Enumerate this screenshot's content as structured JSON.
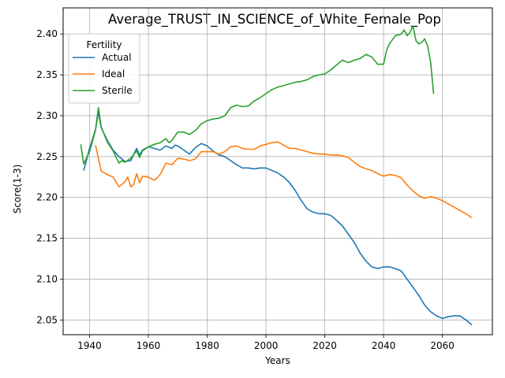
{
  "chart_data": {
    "type": "line",
    "title": "Average_TRUST_IN_SCIENCE_of_White_Female_Pop",
    "xlabel": "Years",
    "ylabel": "Score(1-3)",
    "xlim": [
      1931,
      2077
    ],
    "ylim": [
      2.032,
      2.432
    ],
    "xticks": [
      1940,
      1960,
      1980,
      2000,
      2020,
      2040,
      2060
    ],
    "yticks": [
      2.05,
      2.1,
      2.15,
      2.2,
      2.25,
      2.3,
      2.35,
      2.4
    ],
    "ytick_labels": [
      "2.05",
      "2.10",
      "2.15",
      "2.20",
      "2.25",
      "2.30",
      "2.35",
      "2.40"
    ],
    "grid": true,
    "legend": {
      "title": "Fertility",
      "placement": "top-left"
    },
    "series": [
      {
        "name": "Actual",
        "color": "#1f77b4",
        "x": [
          1938,
          1940,
          1942,
          1943,
          1944,
          1946,
          1948,
          1950,
          1952,
          1954,
          1956,
          1957,
          1958,
          1960,
          1962,
          1964,
          1966,
          1968,
          1969,
          1970,
          1972,
          1974,
          1976,
          1978,
          1980,
          1982,
          1984,
          1986,
          1988,
          1990,
          1992,
          1994,
          1996,
          1998,
          2000,
          2002,
          2004,
          2006,
          2008,
          2010,
          2012,
          2014,
          2016,
          2018,
          2020,
          2022,
          2024,
          2026,
          2028,
          2030,
          2032,
          2034,
          2036,
          2038,
          2040,
          2042,
          2044,
          2046,
          2048,
          2050,
          2052,
          2054,
          2056,
          2058,
          2060,
          2062,
          2064,
          2066,
          2068,
          2070
        ],
        "y": [
          2.233,
          2.26,
          2.283,
          2.304,
          2.285,
          2.27,
          2.258,
          2.25,
          2.244,
          2.245,
          2.26,
          2.252,
          2.258,
          2.262,
          2.26,
          2.258,
          2.263,
          2.26,
          2.264,
          2.263,
          2.258,
          2.253,
          2.261,
          2.266,
          2.263,
          2.257,
          2.252,
          2.25,
          2.245,
          2.24,
          2.236,
          2.236,
          2.235,
          2.236,
          2.236,
          2.233,
          2.23,
          2.225,
          2.218,
          2.208,
          2.196,
          2.186,
          2.182,
          2.18,
          2.18,
          2.178,
          2.172,
          2.165,
          2.155,
          2.145,
          2.132,
          2.122,
          2.115,
          2.113,
          2.115,
          2.115,
          2.113,
          2.11,
          2.1,
          2.09,
          2.08,
          2.068,
          2.06,
          2.055,
          2.052,
          2.054,
          2.055,
          2.055,
          2.05,
          2.044
        ]
      },
      {
        "name": "Ideal",
        "color": "#ff7f0e",
        "x": [
          1942,
          1944,
          1946,
          1948,
          1950,
          1952,
          1953,
          1954,
          1955,
          1956,
          1957,
          1958,
          1960,
          1962,
          1963,
          1964,
          1966,
          1968,
          1970,
          1972,
          1974,
          1976,
          1978,
          1980,
          1982,
          1984,
          1986,
          1988,
          1990,
          1992,
          1994,
          1996,
          1998,
          2000,
          2002,
          2004,
          2006,
          2008,
          2010,
          2012,
          2014,
          2016,
          2018,
          2020,
          2022,
          2024,
          2026,
          2028,
          2030,
          2032,
          2034,
          2036,
          2038,
          2040,
          2042,
          2044,
          2046,
          2048,
          2050,
          2052,
          2054,
          2056,
          2058,
          2060,
          2062,
          2064,
          2066,
          2068,
          2070
        ],
        "y": [
          2.264,
          2.232,
          2.228,
          2.225,
          2.213,
          2.219,
          2.225,
          2.213,
          2.216,
          2.229,
          2.218,
          2.226,
          2.225,
          2.221,
          2.224,
          2.228,
          2.242,
          2.24,
          2.248,
          2.247,
          2.245,
          2.247,
          2.256,
          2.256,
          2.256,
          2.253,
          2.256,
          2.262,
          2.263,
          2.26,
          2.259,
          2.259,
          2.263,
          2.265,
          2.267,
          2.268,
          2.264,
          2.26,
          2.26,
          2.258,
          2.256,
          2.254,
          2.253,
          2.253,
          2.252,
          2.252,
          2.251,
          2.249,
          2.243,
          2.238,
          2.235,
          2.233,
          2.229,
          2.226,
          2.228,
          2.227,
          2.224,
          2.215,
          2.208,
          2.202,
          2.199,
          2.201,
          2.199,
          2.196,
          2.192,
          2.188,
          2.184,
          2.18,
          2.175
        ]
      },
      {
        "name": "Sterile",
        "color": "#2ca02c",
        "x": [
          1937,
          1938,
          1940,
          1942,
          1943,
          1944,
          1946,
          1948,
          1950,
          1951,
          1952,
          1954,
          1956,
          1957,
          1958,
          1960,
          1962,
          1964,
          1966,
          1967,
          1968,
          1970,
          1972,
          1974,
          1976,
          1978,
          1980,
          1982,
          1984,
          1986,
          1988,
          1990,
          1992,
          1994,
          1996,
          1998,
          2000,
          2002,
          2004,
          2006,
          2008,
          2010,
          2012,
          2014,
          2016,
          2018,
          2020,
          2022,
          2024,
          2026,
          2028,
          2030,
          2032,
          2034,
          2036,
          2038,
          2040,
          2041,
          2042,
          2044,
          2046,
          2047,
          2048,
          2049,
          2050,
          2051,
          2052,
          2053,
          2054,
          2055,
          2056,
          2057
        ],
        "y": [
          2.265,
          2.241,
          2.256,
          2.282,
          2.31,
          2.286,
          2.268,
          2.257,
          2.242,
          2.245,
          2.243,
          2.248,
          2.257,
          2.249,
          2.257,
          2.262,
          2.265,
          2.267,
          2.272,
          2.267,
          2.27,
          2.28,
          2.28,
          2.277,
          2.282,
          2.29,
          2.294,
          2.296,
          2.297,
          2.3,
          2.31,
          2.313,
          2.311,
          2.312,
          2.318,
          2.322,
          2.327,
          2.332,
          2.335,
          2.337,
          2.339,
          2.341,
          2.342,
          2.344,
          2.348,
          2.35,
          2.351,
          2.356,
          2.362,
          2.368,
          2.365,
          2.368,
          2.37,
          2.375,
          2.372,
          2.363,
          2.363,
          2.38,
          2.388,
          2.398,
          2.4,
          2.405,
          2.398,
          2.402,
          2.41,
          2.392,
          2.388,
          2.39,
          2.394,
          2.385,
          2.365,
          2.327
        ]
      }
    ]
  }
}
